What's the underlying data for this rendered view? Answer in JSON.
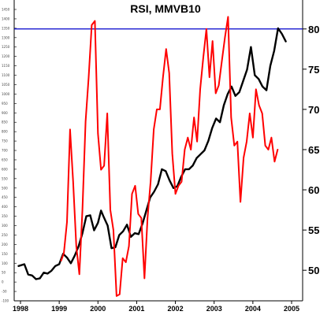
{
  "chart_data": {
    "type": "line",
    "title": "RSI, MMVB10",
    "x_ticks": [
      "1998",
      "1999",
      "2000",
      "2001",
      "2002",
      "2003",
      "2004",
      "2005"
    ],
    "y_ticks_right": [
      80,
      75,
      70,
      65,
      60,
      55,
      50
    ],
    "y_ticks_left": [
      1450,
      1400,
      1350,
      1300,
      1250,
      1200,
      1150,
      1100,
      1050,
      1000,
      950,
      900,
      850,
      800,
      750,
      700,
      650,
      600,
      550,
      500,
      450,
      400,
      350,
      300,
      250,
      200,
      150,
      100,
      50,
      0,
      -50,
      -100
    ],
    "ylim_left": [
      -100,
      1450
    ],
    "ylim_right": [
      46.2,
      83.6
    ],
    "grid": false,
    "colors": {
      "index": "#000000",
      "rsi": "#ff0000",
      "level": "#0000cc"
    },
    "reference_level": 80,
    "series": [
      {
        "key": "index",
        "x": [
          1997.95,
          1998.1,
          1998.2,
          1998.3,
          1998.4,
          1998.5,
          1998.6,
          1998.7,
          1998.8,
          1998.9,
          1999.0,
          1999.1,
          1999.2,
          1999.3,
          1999.4,
          1999.5,
          1999.6,
          1999.7,
          1999.8,
          1999.9,
          2000.0,
          2000.08,
          2000.15,
          2000.25,
          2000.35,
          2000.45,
          2000.55,
          2000.65,
          2000.75,
          2000.85,
          2000.95,
          2001.05,
          2001.15,
          2001.25,
          2001.35,
          2001.45,
          2001.55,
          2001.65,
          2001.75,
          2001.85,
          2001.95,
          2002.05,
          2002.15,
          2002.25,
          2002.35,
          2002.45,
          2002.55,
          2002.65,
          2002.75,
          2002.85,
          2002.95,
          2003.05,
          2003.15,
          2003.25,
          2003.35,
          2003.45,
          2003.55,
          2003.65,
          2003.75,
          2003.85,
          2003.95,
          2004.05,
          2004.15,
          2004.25,
          2004.35,
          2004.45,
          2004.55,
          2004.65,
          2004.75,
          2004.85
        ],
        "values": [
          85,
          95,
          40,
          35,
          15,
          20,
          50,
          45,
          60,
          85,
          95,
          150,
          130,
          100,
          140,
          190,
          260,
          350,
          355,
          275,
          315,
          380,
          345,
          300,
          180,
          185,
          250,
          270,
          305,
          240,
          260,
          255,
          310,
          380,
          450,
          480,
          520,
          600,
          590,
          540,
          500,
          510,
          560,
          600,
          600,
          620,
          660,
          680,
          700,
          750,
          820,
          870,
          850,
          940,
          1000,
          1040,
          990,
          1010,
          1070,
          1130,
          1250,
          1100,
          1080,
          1040,
          1020,
          1150,
          1230,
          1350,
          1320,
          1280
        ]
      },
      {
        "key": "rsi",
        "x": [
          1999.05,
          1999.12,
          1999.2,
          1999.28,
          1999.36,
          1999.44,
          1999.52,
          1999.6,
          1999.68,
          1999.76,
          1999.84,
          1999.92,
          2000.0,
          2000.08,
          2000.16,
          2000.24,
          2000.32,
          2000.4,
          2000.48,
          2000.56,
          2000.64,
          2000.72,
          2000.8,
          2000.88,
          2000.96,
          2001.04,
          2001.12,
          2001.2,
          2001.28,
          2001.36,
          2001.44,
          2001.52,
          2001.6,
          2001.68,
          2001.76,
          2001.84,
          2001.92,
          2002.0,
          2002.08,
          2002.16,
          2002.24,
          2002.32,
          2002.4,
          2002.48,
          2002.56,
          2002.64,
          2002.72,
          2002.8,
          2002.88,
          2002.96,
          2003.04,
          2003.12,
          2003.2,
          2003.28,
          2003.36,
          2003.44,
          2003.52,
          2003.6,
          2003.68,
          2003.76,
          2003.84,
          2003.92,
          2004.0,
          2004.08,
          2004.16,
          2004.24,
          2004.32,
          2004.4,
          2004.48,
          2004.56,
          2004.64
        ],
        "values": [
          51.2,
          52.1,
          56.0,
          67.5,
          61.0,
          53.0,
          49.5,
          57.5,
          68.5,
          74.0,
          80.5,
          81.0,
          67.0,
          62.5,
          63.0,
          69.5,
          57.5,
          55.0,
          46.8,
          47.0,
          51.5,
          51.0,
          53.0,
          59.5,
          60.5,
          57.0,
          56.5,
          49.0,
          56.5,
          61.0,
          67.5,
          70.0,
          70.0,
          74.0,
          77.5,
          74.5,
          64.5,
          59.5,
          60.5,
          61.0,
          65.0,
          66.5,
          65.0,
          69.0,
          66.0,
          72.5,
          76.5,
          80.0,
          74.0,
          78.5,
          72.0,
          73.0,
          76.0,
          79.0,
          81.5,
          69.0,
          65.5,
          66.0,
          58.5,
          64.0,
          66.0,
          69.5,
          66.5,
          72.5,
          70.5,
          69.5,
          65.5,
          65.0,
          66.5,
          63.5,
          65.0
        ]
      }
    ]
  }
}
